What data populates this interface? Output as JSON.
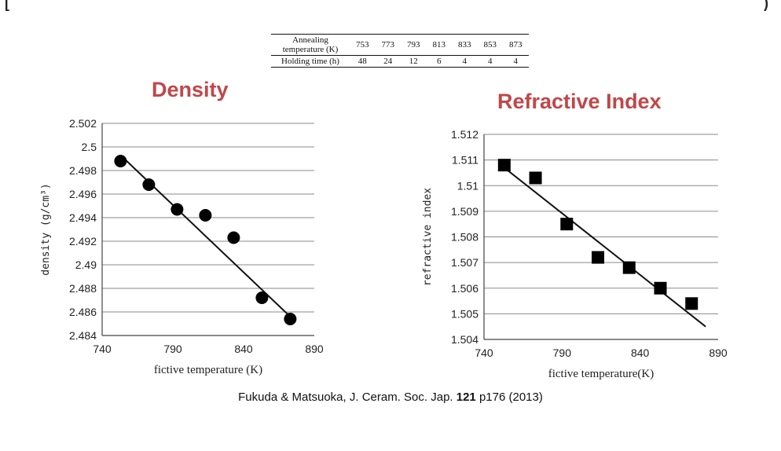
{
  "table": {
    "row1_label": "Annealing temperature (K)",
    "row1_values": [
      "753",
      "773",
      "793",
      "813",
      "833",
      "853",
      "873"
    ],
    "row2_label": "Holding time (h)",
    "row2_values": [
      "48",
      "24",
      "12",
      "6",
      "4",
      "4",
      "4"
    ]
  },
  "chart_data": [
    {
      "type": "scatter",
      "title": "Density",
      "xlabel": "fictive temperature (K)",
      "ylabel": "density (g/cm³)",
      "xlim": [
        740,
        890
      ],
      "ylim": [
        2.484,
        2.502
      ],
      "x_ticks": [
        "740",
        "790",
        "840",
        "890"
      ],
      "y_ticks": [
        "2.484",
        "2.486",
        "2.488",
        "2.49",
        "2.492",
        "2.494",
        "2.496",
        "2.498",
        "2.5",
        "2.502"
      ],
      "grid": "horizontal",
      "marker": "circle",
      "x": [
        753,
        773,
        793,
        813,
        833,
        853,
        873
      ],
      "y": [
        2.4988,
        2.4968,
        2.4947,
        2.4942,
        2.4923,
        2.4872,
        2.4854
      ],
      "fit_line": {
        "x": [
          753,
          873
        ],
        "y": [
          2.4993,
          2.4856
        ]
      }
    },
    {
      "type": "scatter",
      "title": "Refractive Index",
      "xlabel": "fictive temperature(K)",
      "ylabel": "refractive index",
      "xlim": [
        740,
        890
      ],
      "ylim": [
        1.504,
        1.512
      ],
      "x_ticks": [
        "740",
        "790",
        "840",
        "890"
      ],
      "y_ticks": [
        "1.504",
        "1.505",
        "1.506",
        "1.507",
        "1.508",
        "1.509",
        "1.51",
        "1.511",
        "1.512"
      ],
      "grid": "horizontal",
      "marker": "square",
      "x": [
        753,
        773,
        793,
        813,
        833,
        853,
        873
      ],
      "y": [
        1.5108,
        1.5103,
        1.5085,
        1.5072,
        1.5068,
        1.506,
        1.5054
      ],
      "fit_line": {
        "x": [
          753,
          882
        ],
        "y": [
          1.5107,
          1.5045
        ]
      }
    }
  ],
  "citation": {
    "before": "Fukuda & Matsuoka, J. Ceram. Soc. Jap. ",
    "volume": "121",
    "after": " p176 (2013)"
  }
}
